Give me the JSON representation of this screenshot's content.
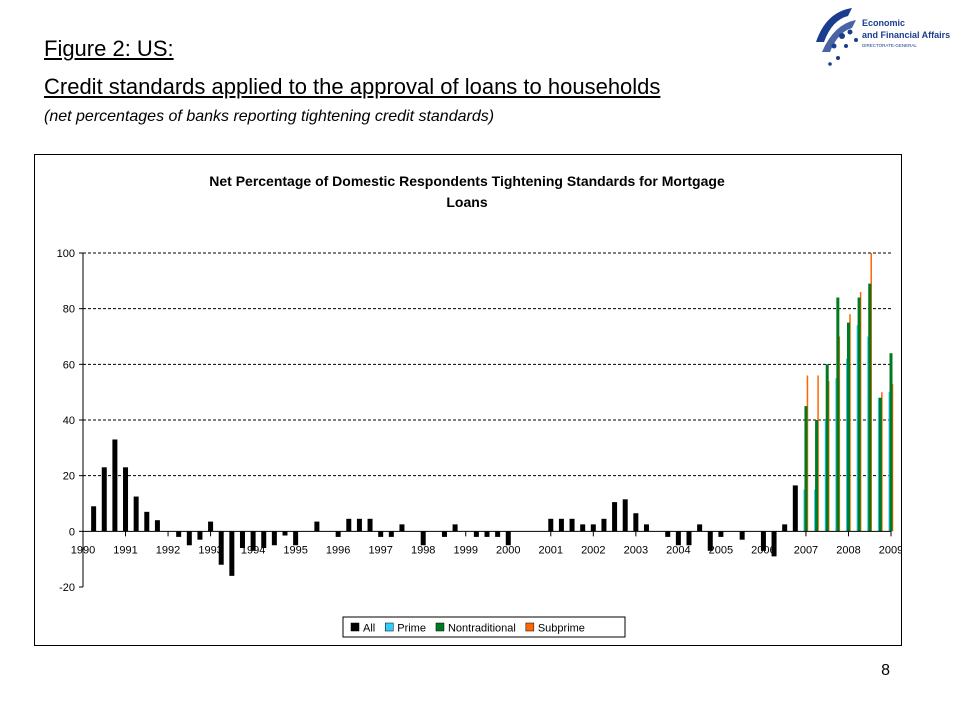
{
  "slide": {
    "figure_title": "Figure 2:   US:",
    "figure_subtitle": "Credit standards applied to the approval of loans to households",
    "figure_note": "(net percentages of banks reporting tightening credit standards)",
    "page_number": "8",
    "logo": {
      "line1": "Economic",
      "line2": "and Financial Affairs",
      "line3": "DIRECTORATE-GENERAL"
    }
  },
  "chart_data": {
    "type": "bar",
    "title": "Net Percentage of Domestic Respondents Tightening Standards for Mortgage Loans",
    "xlabel": "",
    "ylabel": "",
    "ylim": [
      -20,
      100
    ],
    "yticks": [
      -20,
      0,
      20,
      40,
      60,
      80,
      100
    ],
    "xlim": [
      1990,
      2009
    ],
    "year_labels": [
      "1990",
      "1991",
      "1992",
      "1993",
      "1994",
      "1995",
      "1996",
      "1997",
      "1998",
      "1999",
      "2000",
      "2001",
      "2002",
      "2003",
      "2004",
      "2005",
      "2006",
      "2007",
      "2008",
      "2009"
    ],
    "grid": "horizontal dashed",
    "legend_position": "bottom",
    "colors": {
      "All": "#000000",
      "Prime": "#33ccff",
      "Nontraditional": "#007a1f",
      "Subprime": "#ff6600"
    },
    "series": [
      {
        "name": "All",
        "points": [
          [
            1990.25,
            9
          ],
          [
            1990.5,
            23
          ],
          [
            1990.75,
            33
          ],
          [
            1991.0,
            23
          ],
          [
            1991.25,
            12.5
          ],
          [
            1991.5,
            7
          ],
          [
            1991.75,
            4
          ],
          [
            1992.25,
            -2
          ],
          [
            1992.5,
            -5
          ],
          [
            1992.75,
            -3
          ],
          [
            1993.0,
            3.5
          ],
          [
            1993.25,
            -12
          ],
          [
            1993.5,
            -16
          ],
          [
            1993.75,
            -6
          ],
          [
            1994.0,
            -7
          ],
          [
            1994.25,
            -6
          ],
          [
            1994.5,
            -5
          ],
          [
            1994.75,
            -1.5
          ],
          [
            1995.0,
            -5
          ],
          [
            1995.5,
            3.5
          ],
          [
            1996.0,
            -2
          ],
          [
            1996.25,
            4.5
          ],
          [
            1996.5,
            4.5
          ],
          [
            1996.75,
            4.5
          ],
          [
            1997.0,
            -2
          ],
          [
            1997.25,
            -2
          ],
          [
            1997.5,
            2.5
          ],
          [
            1998.0,
            -5
          ],
          [
            1998.5,
            -2
          ],
          [
            1998.75,
            2.5
          ],
          [
            1999.25,
            -2
          ],
          [
            1999.5,
            -2
          ],
          [
            1999.75,
            -2
          ],
          [
            2000.0,
            -5
          ],
          [
            2001.0,
            4.5
          ],
          [
            2001.25,
            4.5
          ],
          [
            2001.5,
            4.5
          ],
          [
            2001.75,
            2.5
          ],
          [
            2002.0,
            2.5
          ],
          [
            2002.25,
            4.5
          ],
          [
            2002.5,
            10.5
          ],
          [
            2002.75,
            11.5
          ],
          [
            2003.0,
            6.5
          ],
          [
            2003.25,
            2.5
          ],
          [
            2003.75,
            -2
          ],
          [
            2004.0,
            -5
          ],
          [
            2004.25,
            -5
          ],
          [
            2004.5,
            2.5
          ],
          [
            2004.75,
            -7
          ],
          [
            2005.0,
            -2
          ],
          [
            2005.5,
            -3
          ],
          [
            2006.0,
            -7
          ],
          [
            2006.25,
            -9
          ],
          [
            2006.5,
            2.5
          ],
          [
            2006.75,
            16.5
          ]
        ]
      },
      {
        "name": "Prime",
        "points": [
          [
            2007.0,
            15
          ],
          [
            2007.25,
            15
          ],
          [
            2007.5,
            40
          ],
          [
            2007.75,
            55
          ],
          [
            2008.0,
            62
          ],
          [
            2008.25,
            74
          ],
          [
            2008.5,
            70
          ],
          [
            2008.75,
            48
          ],
          [
            2009.0,
            50
          ]
        ]
      },
      {
        "name": "Nontraditional",
        "points": [
          [
            2007.0,
            45
          ],
          [
            2007.25,
            40
          ],
          [
            2007.5,
            60
          ],
          [
            2007.75,
            84
          ],
          [
            2008.0,
            75
          ],
          [
            2008.25,
            84
          ],
          [
            2008.5,
            89
          ],
          [
            2008.75,
            48
          ],
          [
            2009.0,
            64
          ]
        ]
      },
      {
        "name": "Subprime",
        "points": [
          [
            2007.0,
            56
          ],
          [
            2007.25,
            56
          ],
          [
            2007.5,
            54
          ],
          [
            2007.75,
            70
          ],
          [
            2008.0,
            78
          ],
          [
            2008.25,
            86
          ],
          [
            2008.5,
            100
          ],
          [
            2008.75,
            50
          ],
          [
            2009.0,
            53
          ]
        ]
      }
    ]
  }
}
